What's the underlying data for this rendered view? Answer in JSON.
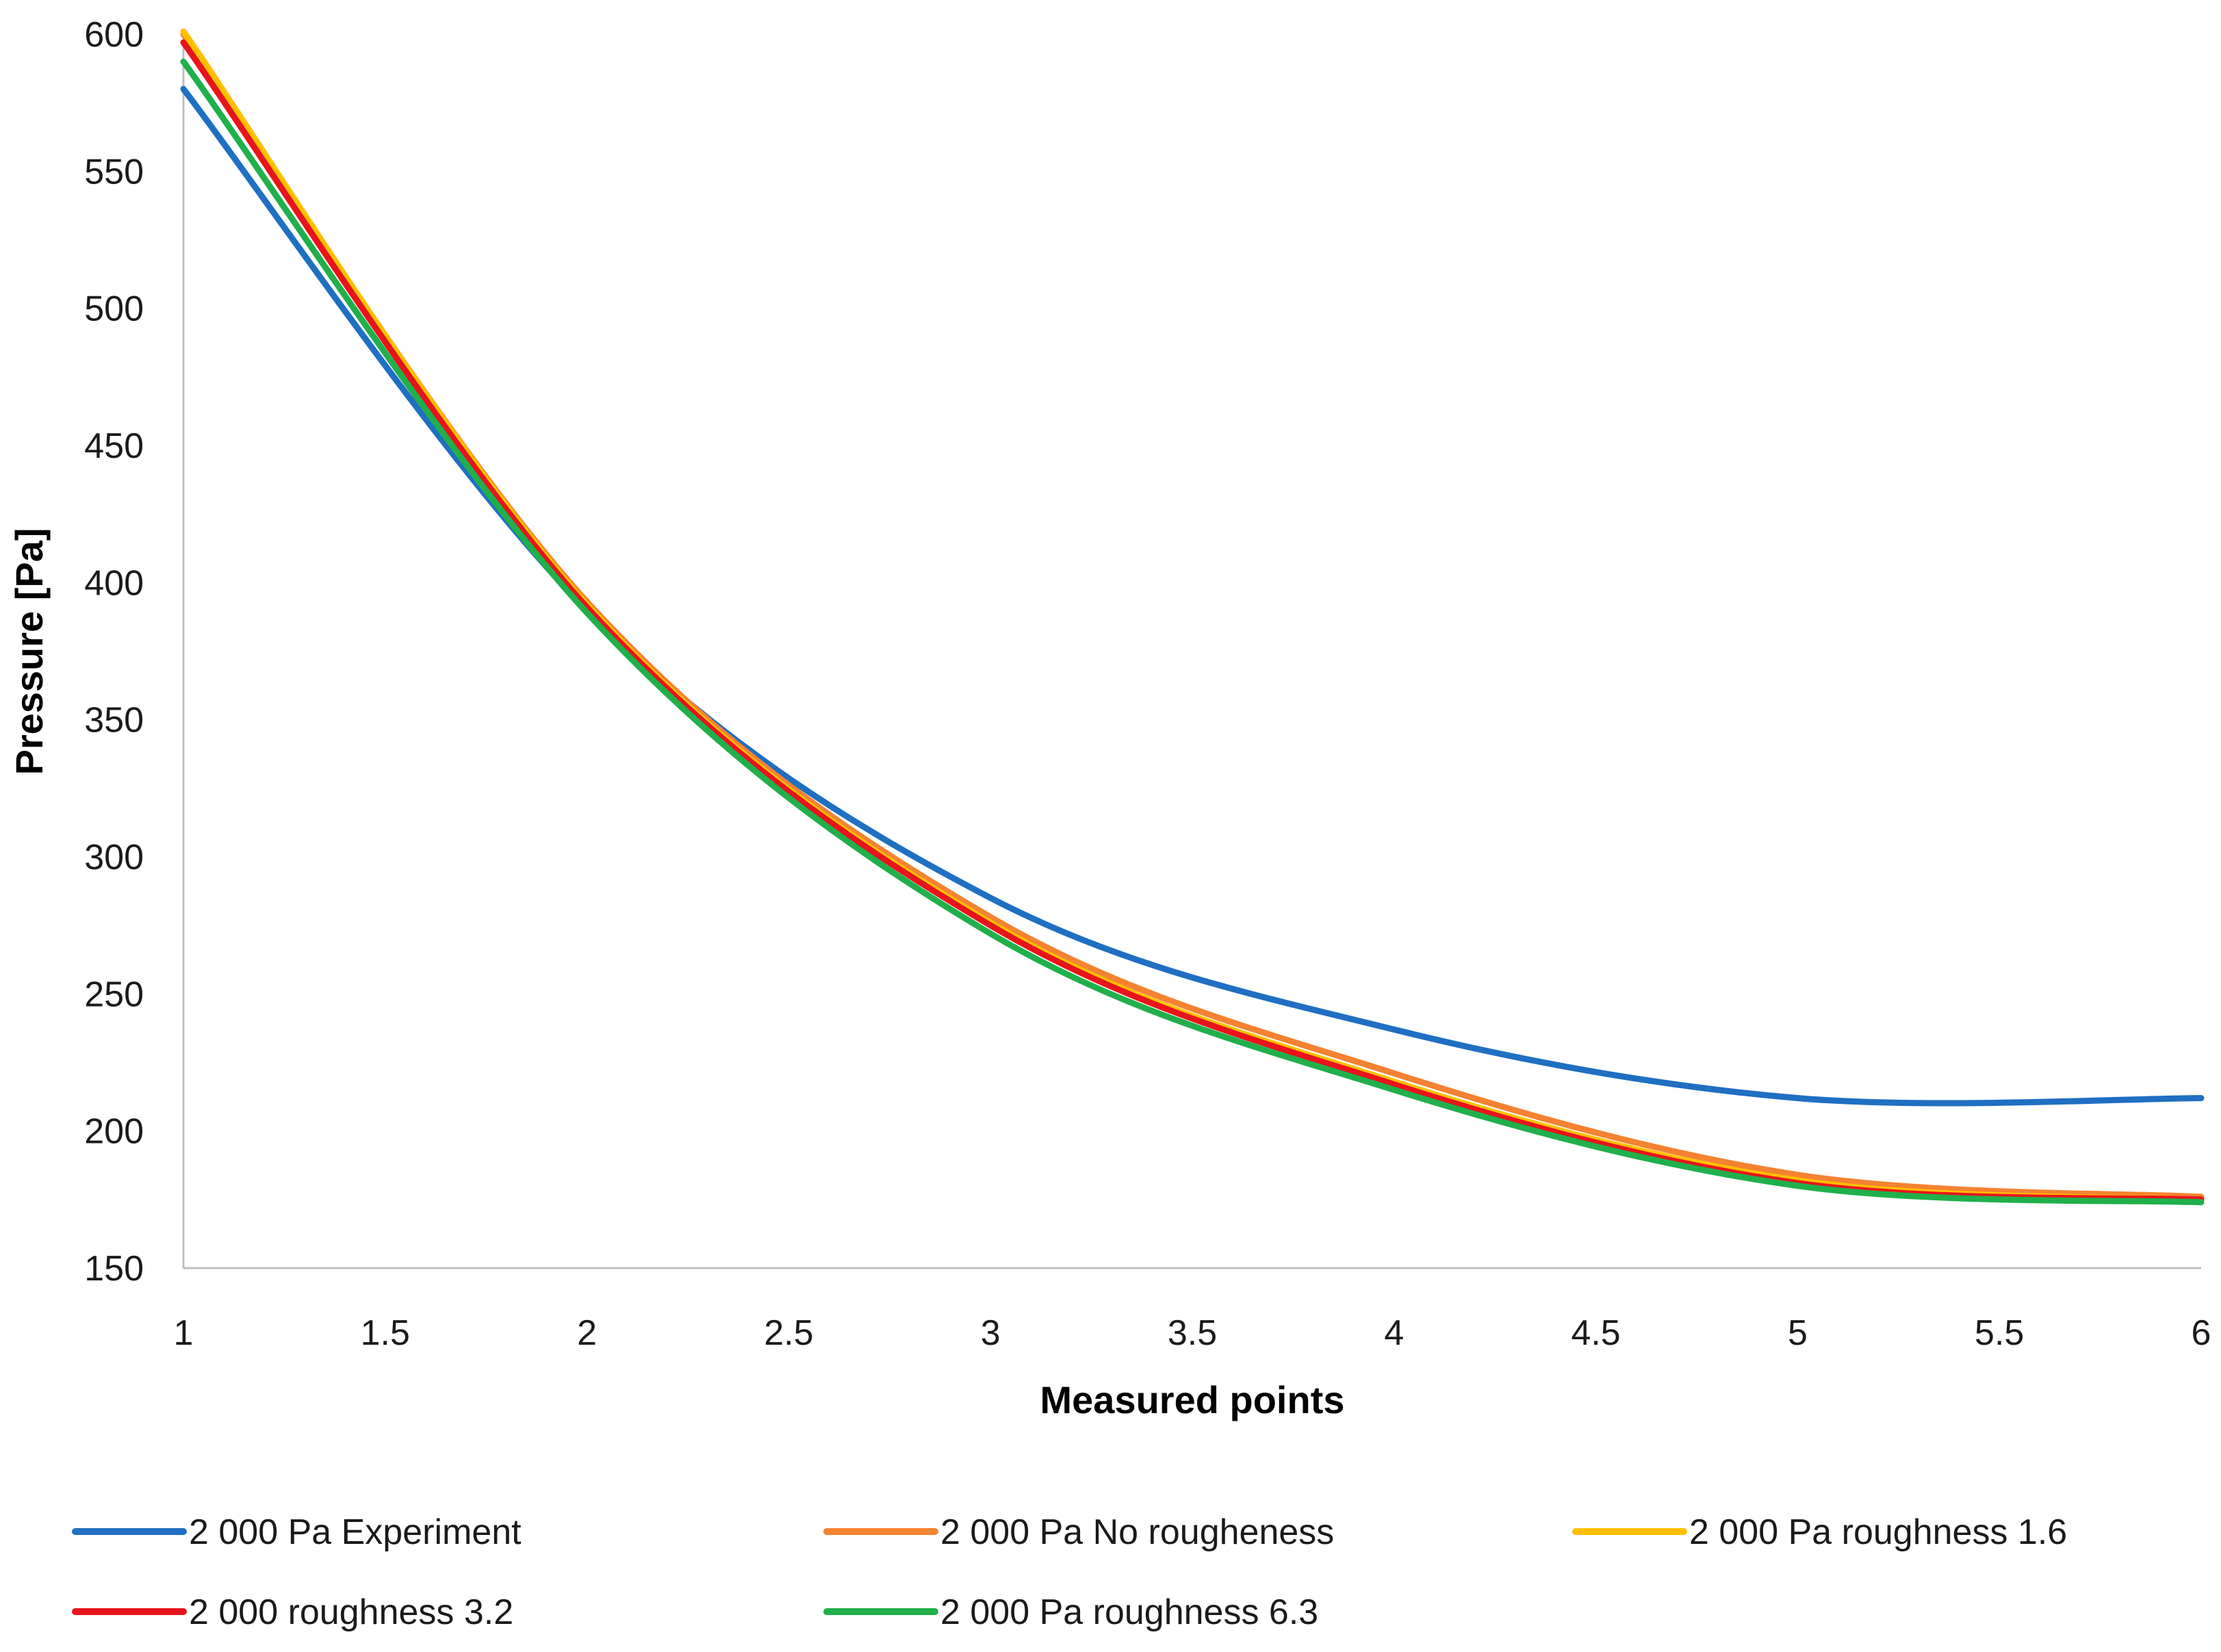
{
  "chart_data": {
    "type": "line",
    "title": "",
    "xlabel": "Measured points",
    "ylabel": "Pressure [Pa]",
    "xlim": [
      1,
      6
    ],
    "ylim": [
      150,
      600
    ],
    "x_ticks": [
      "1",
      "1.5",
      "2",
      "2.5",
      "3",
      "3.5",
      "4",
      "4.5",
      "5",
      "5.5",
      "6"
    ],
    "y_ticks": [
      "150",
      "200",
      "250",
      "300",
      "350",
      "400",
      "450",
      "500",
      "550",
      "600"
    ],
    "grid": false,
    "legend_position": "bottom",
    "x": [
      1,
      2,
      3,
      4,
      5,
      6
    ],
    "series": [
      {
        "name": "2 000 Pa Experiment",
        "color": "#1f6fc2",
        "values": [
          580,
          390,
          285,
          237,
          212,
          212
        ]
      },
      {
        "name": "2 000 Pa No rougheness",
        "color": "#f58231",
        "values": [
          600,
          393,
          278,
          221,
          184,
          176
        ]
      },
      {
        "name": "2 000 Pa roughness 1.6",
        "color": "#ffc000",
        "values": [
          601,
          392,
          276,
          218,
          182,
          175
        ]
      },
      {
        "name": "2 000 roughness 3.2",
        "color": "#e8141b",
        "values": [
          597,
          391,
          275,
          217,
          181,
          175
        ]
      },
      {
        "name": "2 000 Pa roughness 6.3",
        "color": "#20b04b",
        "values": [
          590,
          389,
          272,
          215,
          180,
          174
        ]
      }
    ]
  }
}
